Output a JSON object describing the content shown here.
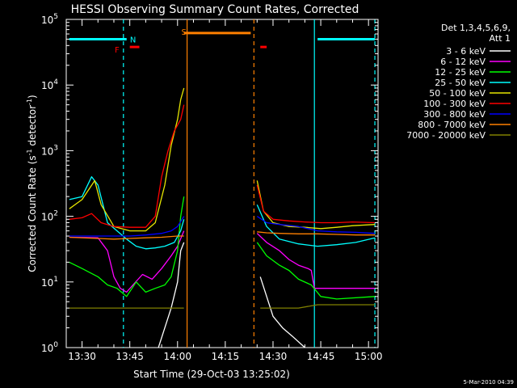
{
  "chart_data": {
    "type": "line",
    "title": "HESSI Observing Summary Count Rates, Corrected",
    "xlabel": "Start Time (29-Oct-03 13:25:02)",
    "ylabel_main": "Corrected Count Rate (s",
    "ylabel_sup1": "-1",
    "ylabel_mid": " detector",
    "ylabel_sup2": "-1",
    "ylabel_end": ")",
    "footer": "5-Mar-2010 04:39",
    "x_range": [
      "13:25:02",
      "15:03:00"
    ],
    "y_range": [
      1,
      100000
    ],
    "y_scale": "log",
    "x_ticks": [
      "13:30",
      "13:45",
      "14:00",
      "14:15",
      "14:30",
      "14:45",
      "15:00"
    ],
    "y_ticks": [
      {
        "base": "10",
        "exp": "0"
      },
      {
        "base": "10",
        "exp": "1"
      },
      {
        "base": "10",
        "exp": "2"
      },
      {
        "base": "10",
        "exp": "3"
      },
      {
        "base": "10",
        "exp": "4"
      },
      {
        "base": "10",
        "exp": "5"
      }
    ],
    "legend": {
      "position": "right",
      "header": [
        "Det 1,3,4,5,6,9,",
        "Att 1"
      ],
      "entries": [
        {
          "label": "3 - 6 keV",
          "color": "#ffffff"
        },
        {
          "label": "6 - 12 keV",
          "color": "#ff00ff"
        },
        {
          "label": "12 - 25 keV",
          "color": "#00ff00"
        },
        {
          "label": "25 - 50 keV",
          "color": "#00ffff"
        },
        {
          "label": "50 - 100 keV",
          "color": "#e6e600"
        },
        {
          "label": "100 - 300 keV",
          "color": "#ff0000"
        },
        {
          "label": "300 - 800 keV",
          "color": "#0000ff"
        },
        {
          "label": "800 - 7000 keV",
          "color": "#ff8000"
        },
        {
          "label": "7000 - 20000 keV",
          "color": "#808000"
        }
      ]
    },
    "annotations": {
      "flags": [
        {
          "label": "F",
          "color": "#ff0000",
          "x": "13:41",
          "y": 35000
        },
        {
          "label": "N",
          "color": "#00ffff",
          "x": "13:46",
          "y": 50000
        },
        {
          "label": "S",
          "color": "#ff8000",
          "x": "14:02",
          "y": 65000
        }
      ],
      "bars": [
        {
          "color": "#00ffff",
          "start": "13:26",
          "end": "13:44",
          "y": 50000
        },
        {
          "color": "#00ffff",
          "start": "14:44",
          "end": "15:02",
          "y": 50000
        },
        {
          "color": "#ff0000",
          "start": "13:45",
          "end": "13:48",
          "y": 38000
        },
        {
          "color": "#ff0000",
          "start": "14:26",
          "end": "14:28",
          "y": 38000
        },
        {
          "color": "#ff8000",
          "start": "14:02",
          "end": "14:23",
          "y": 62000
        }
      ],
      "vlines": [
        {
          "x": "13:43",
          "color": "#00ffff",
          "style": "dashed"
        },
        {
          "x": "14:03",
          "color": "#ff8000",
          "style": "solid"
        },
        {
          "x": "14:24",
          "color": "#ff8000",
          "style": "dashed"
        },
        {
          "x": "14:43",
          "color": "#00ffff",
          "style": "solid"
        },
        {
          "x": "15:02",
          "color": "#00ffff",
          "style": "dashed"
        }
      ]
    },
    "series": [
      {
        "name": "3 - 6 keV",
        "color": "#ffffff",
        "segments": [
          [
            [
              "13:54",
              1.0
            ],
            [
              "13:56",
              2
            ],
            [
              "13:58",
              4
            ],
            [
              "14:00",
              10
            ],
            [
              "14:01",
              30
            ],
            [
              "14:02",
              40
            ]
          ],
          [
            [
              "14:26",
              12
            ],
            [
              "14:28",
              6
            ],
            [
              "14:30",
              3
            ],
            [
              "14:33",
              2
            ],
            [
              "14:36",
              1.5
            ],
            [
              "14:40",
              1.0
            ]
          ]
        ]
      },
      {
        "name": "6 - 12 keV",
        "color": "#ff00ff",
        "segments": [
          [
            [
              "13:26",
              48
            ],
            [
              "13:35",
              47
            ],
            [
              "13:38",
              30
            ],
            [
              "13:40",
              12
            ],
            [
              "13:42",
              8
            ],
            [
              "13:44",
              7
            ],
            [
              "13:46",
              9
            ],
            [
              "13:49",
              13
            ],
            [
              "13:52",
              11
            ],
            [
              "13:55",
              16
            ],
            [
              "13:58",
              25
            ],
            [
              "14:00",
              35
            ],
            [
              "14:02",
              60
            ]
          ],
          [
            [
              "14:25",
              55
            ],
            [
              "14:28",
              40
            ],
            [
              "14:32",
              30
            ],
            [
              "14:35",
              22
            ],
            [
              "14:38",
              18
            ],
            [
              "14:41",
              16
            ],
            [
              "14:42",
              15
            ],
            [
              "14:43",
              8
            ],
            [
              "14:50",
              8
            ],
            [
              "15:02",
              8
            ]
          ]
        ]
      },
      {
        "name": "12 - 25 keV",
        "color": "#00ff00",
        "segments": [
          [
            [
              "13:26",
              20
            ],
            [
              "13:30",
              16
            ],
            [
              "13:35",
              12
            ],
            [
              "13:38",
              9
            ],
            [
              "13:41",
              8
            ],
            [
              "13:44",
              6
            ],
            [
              "13:47",
              10
            ],
            [
              "13:50",
              7
            ],
            [
              "13:53",
              8
            ],
            [
              "13:56",
              9
            ],
            [
              "13:58",
              12
            ],
            [
              "14:00",
              30
            ],
            [
              "14:01",
              100
            ],
            [
              "14:02",
              200
            ]
          ],
          [
            [
              "14:25",
              40
            ],
            [
              "14:28",
              25
            ],
            [
              "14:32",
              18
            ],
            [
              "14:35",
              15
            ],
            [
              "14:38",
              11
            ],
            [
              "14:42",
              9
            ],
            [
              "14:45",
              6
            ],
            [
              "14:50",
              5.5
            ],
            [
              "15:02",
              6
            ]
          ]
        ]
      },
      {
        "name": "25 - 50 keV",
        "color": "#00ffff",
        "segments": [
          [
            [
              "13:26",
              180
            ],
            [
              "13:30",
              200
            ],
            [
              "13:33",
              400
            ],
            [
              "13:35",
              300
            ],
            [
              "13:38",
              80
            ],
            [
              "13:41",
              60
            ],
            [
              "13:44",
              45
            ],
            [
              "13:47",
              35
            ],
            [
              "13:50",
              32
            ],
            [
              "13:53",
              33
            ],
            [
              "13:56",
              35
            ],
            [
              "13:59",
              40
            ],
            [
              "14:01",
              60
            ],
            [
              "14:02",
              90
            ]
          ],
          [
            [
              "14:25",
              150
            ],
            [
              "14:28",
              70
            ],
            [
              "14:32",
              45
            ],
            [
              "14:38",
              38
            ],
            [
              "14:44",
              35
            ],
            [
              "14:50",
              37
            ],
            [
              "14:56",
              40
            ],
            [
              "15:02",
              47
            ]
          ]
        ]
      },
      {
        "name": "50 - 100 keV",
        "color": "#e6e600",
        "segments": [
          [
            [
              "13:26",
              130
            ],
            [
              "13:30",
              180
            ],
            [
              "13:34",
              350
            ],
            [
              "13:36",
              150
            ],
            [
              "13:40",
              70
            ],
            [
              "13:45",
              60
            ],
            [
              "13:50",
              60
            ],
            [
              "13:53",
              80
            ],
            [
              "13:56",
              300
            ],
            [
              "13:58",
              1200
            ],
            [
              "14:00",
              3000
            ],
            [
              "14:01",
              6000
            ],
            [
              "14:02",
              9000
            ]
          ],
          [
            [
              "14:25",
              350
            ],
            [
              "14:27",
              120
            ],
            [
              "14:30",
              80
            ],
            [
              "14:35",
              70
            ],
            [
              "14:40",
              68
            ],
            [
              "14:45",
              65
            ],
            [
              "14:50",
              68
            ],
            [
              "14:55",
              72
            ],
            [
              "15:02",
              75
            ]
          ]
        ]
      },
      {
        "name": "100 - 300 keV",
        "color": "#ff0000",
        "segments": [
          [
            [
              "13:26",
              90
            ],
            [
              "13:30",
              95
            ],
            [
              "13:33",
              110
            ],
            [
              "13:36",
              80
            ],
            [
              "13:40",
              70
            ],
            [
              "13:45",
              68
            ],
            [
              "13:50",
              68
            ],
            [
              "13:53",
              100
            ],
            [
              "13:55",
              400
            ],
            [
              "13:57",
              1000
            ],
            [
              "13:59",
              2000
            ],
            [
              "14:01",
              3000
            ],
            [
              "14:02",
              5000
            ]
          ],
          [
            [
              "14:25",
              300
            ],
            [
              "14:27",
              120
            ],
            [
              "14:30",
              90
            ],
            [
              "14:35",
              85
            ],
            [
              "14:40",
              82
            ],
            [
              "14:45",
              80
            ],
            [
              "14:50",
              80
            ],
            [
              "14:55",
              82
            ],
            [
              "15:02",
              80
            ]
          ]
        ]
      },
      {
        "name": "300 - 800 keV",
        "color": "#0000ff",
        "segments": [
          [
            [
              "13:26",
              50
            ],
            [
              "13:35",
              50
            ],
            [
              "13:40",
              50
            ],
            [
              "13:45",
              50
            ],
            [
              "13:50",
              52
            ],
            [
              "13:55",
              55
            ],
            [
              "13:58",
              60
            ],
            [
              "14:00",
              70
            ],
            [
              "14:02",
              100
            ]
          ],
          [
            [
              "14:25",
              100
            ],
            [
              "14:28",
              80
            ],
            [
              "14:32",
              75
            ],
            [
              "14:38",
              70
            ],
            [
              "14:44",
              60
            ],
            [
              "14:50",
              58
            ],
            [
              "14:56",
              57
            ],
            [
              "15:02",
              55
            ]
          ]
        ]
      },
      {
        "name": "800 - 7000 keV",
        "color": "#ff8000",
        "segments": [
          [
            [
              "13:26",
              48
            ],
            [
              "13:35",
              46
            ],
            [
              "13:40",
              45
            ],
            [
              "13:45",
              46
            ],
            [
              "13:50",
              47
            ],
            [
              "13:55",
              48
            ],
            [
              "14:00",
              50
            ],
            [
              "14:02",
              50
            ]
          ],
          [
            [
              "14:25",
              58
            ],
            [
              "14:28",
              56
            ],
            [
              "14:32",
              55
            ],
            [
              "14:38",
              54
            ],
            [
              "14:44",
              54
            ],
            [
              "14:50",
              53
            ],
            [
              "14:56",
              52
            ],
            [
              "15:02",
              52
            ]
          ]
        ]
      },
      {
        "name": "7000 - 20000 keV",
        "color": "#808000",
        "segments": [
          [
            [
              "13:26",
              4
            ],
            [
              "13:35",
              4
            ],
            [
              "13:40",
              4
            ],
            [
              "13:45",
              4
            ],
            [
              "13:50",
              4
            ],
            [
              "13:55",
              4
            ],
            [
              "14:00",
              4
            ],
            [
              "14:02",
              4
            ]
          ],
          [
            [
              "14:26",
              4
            ],
            [
              "14:32",
              4
            ],
            [
              "14:38",
              4
            ],
            [
              "14:44",
              4.5
            ],
            [
              "14:50",
              4.5
            ],
            [
              "14:56",
              4.5
            ],
            [
              "15:02",
              4.5
            ]
          ]
        ]
      }
    ]
  }
}
